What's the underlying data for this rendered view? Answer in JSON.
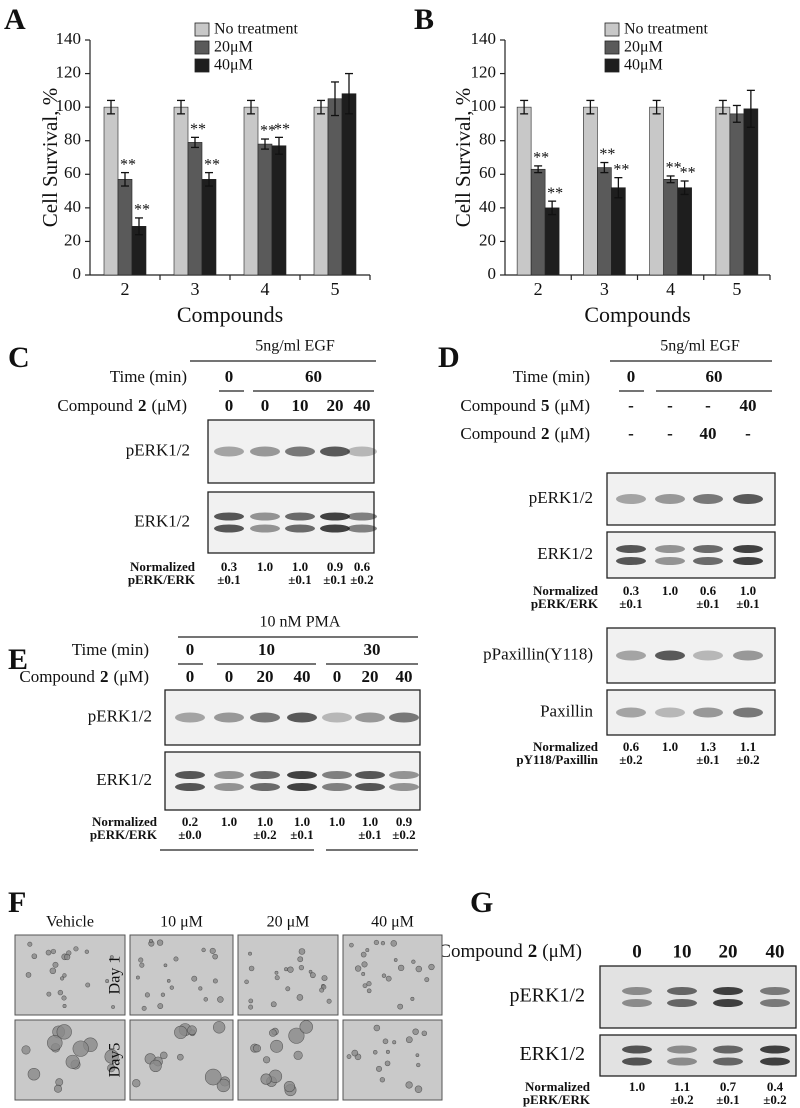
{
  "chart_data": [
    {
      "type": "bar",
      "label": "A",
      "ylabel": "Cell Survival, %",
      "xlabel": "Compounds",
      "categories": [
        "2",
        "3",
        "4",
        "5"
      ],
      "series": [
        {
          "name": "No treatment",
          "color": "#c8c8c8",
          "values": [
            100,
            100,
            100,
            100
          ],
          "errors": [
            4,
            4,
            4,
            4
          ]
        },
        {
          "name": "20μM",
          "color": "#5a5a5a",
          "values": [
            57,
            79,
            78,
            105
          ],
          "errors": [
            4,
            3,
            3,
            10
          ],
          "markers": [
            "**",
            "**",
            "**",
            null
          ]
        },
        {
          "name": "40μM",
          "color": "#1e1e1e",
          "values": [
            29,
            57,
            77,
            108
          ],
          "errors": [
            5,
            4,
            5,
            12
          ],
          "markers": [
            "**",
            "**",
            "**",
            null
          ]
        }
      ],
      "ylim": [
        0,
        140
      ],
      "yticks": [
        0,
        20,
        40,
        60,
        80,
        100,
        120,
        140
      ]
    },
    {
      "type": "bar",
      "label": "B",
      "ylabel": "Cell Survival, %",
      "xlabel": "Compounds",
      "categories": [
        "2",
        "3",
        "4",
        "5"
      ],
      "series": [
        {
          "name": "No treatment",
          "color": "#c8c8c8",
          "values": [
            100,
            100,
            100,
            100
          ],
          "errors": [
            4,
            4,
            4,
            4
          ]
        },
        {
          "name": "20μM",
          "color": "#5a5a5a",
          "values": [
            63,
            64,
            57,
            96
          ],
          "errors": [
            2,
            3,
            2,
            5
          ],
          "markers": [
            "**",
            "**",
            "**",
            null
          ]
        },
        {
          "name": "40μM",
          "color": "#1e1e1e",
          "values": [
            40,
            52,
            52,
            99
          ],
          "errors": [
            4,
            6,
            4,
            11
          ],
          "markers": [
            "**",
            "**",
            "**",
            null
          ]
        }
      ],
      "ylim": [
        0,
        140
      ],
      "yticks": [
        0,
        20,
        40,
        60,
        80,
        100,
        120,
        140
      ]
    }
  ],
  "blots": [
    {
      "label": "C",
      "treatment": "5ng/ml EGF",
      "header_rows": [
        {
          "label": "Time (min)",
          "cells": [
            "0",
            "60"
          ]
        },
        {
          "label": {
            "prefix": "Compound",
            "compound": "2",
            "unit": "(μM)"
          },
          "cells": [
            "0",
            "0",
            "10",
            "20",
            "40"
          ]
        }
      ],
      "blot_labels": [
        "pERK1/2",
        "ERK1/2"
      ],
      "normalized": [
        {
          "label": [
            "Normalized",
            "pERK/ERK"
          ],
          "values": [
            [
              "0.3",
              "±0.1"
            ],
            [
              "1.0"
            ],
            [
              "1.0",
              "±0.1"
            ],
            [
              "0.9",
              "±0.1"
            ],
            [
              "0.6",
              "±0.2"
            ]
          ]
        }
      ]
    },
    {
      "label": "D",
      "treatment": "5ng/ml EGF",
      "header_rows": [
        {
          "label": "Time (min)",
          "cells": [
            "0",
            "60"
          ]
        },
        {
          "label": {
            "prefix": "Compound",
            "compound": "5",
            "unit": "(μM)"
          },
          "cells": [
            "-",
            "-",
            "-",
            "40"
          ]
        },
        {
          "label": {
            "prefix": "Compound",
            "compound": "2",
            "unit": "(μM)"
          },
          "cells": [
            "-",
            "-",
            "40",
            "-"
          ]
        }
      ],
      "blot_labels": [
        "pERK1/2",
        "ERK1/2",
        "pPaxillin(Y118)",
        "Paxillin"
      ],
      "normalized": [
        {
          "label": [
            "Normalized",
            "pERK/ERK"
          ],
          "values": [
            [
              "0.3",
              "±0.1"
            ],
            [
              "1.0"
            ],
            [
              "0.6",
              "±0.1"
            ],
            [
              "1.0",
              "±0.1"
            ]
          ]
        },
        {
          "label": [
            "Normalized",
            "pY118/Paxillin"
          ],
          "values": [
            [
              "0.6",
              "±0.2"
            ],
            [
              "1.0"
            ],
            [
              "1.3",
              "±0.1"
            ],
            [
              "1.1",
              "±0.2"
            ]
          ]
        }
      ]
    },
    {
      "label": "E",
      "treatment": "10 nM PMA",
      "header_rows": [
        {
          "label": "Time (min)",
          "cells": [
            "0",
            "10",
            "30"
          ]
        },
        {
          "label": {
            "prefix": "Compound",
            "compound": "2",
            "unit": "(μM)"
          },
          "cells": [
            "0",
            "0",
            "20",
            "40",
            "0",
            "20",
            "40"
          ]
        }
      ],
      "blot_labels": [
        "pERK1/2",
        "ERK1/2"
      ],
      "normalized": [
        {
          "label": [
            "Normalized",
            "pERK/ERK"
          ],
          "values": [
            [
              "0.2",
              "±0.0"
            ],
            [
              "1.0"
            ],
            [
              "1.0",
              "±0.2"
            ],
            [
              "1.0",
              "±0.1"
            ],
            [
              "1.0"
            ],
            [
              "1.0",
              "±0.1"
            ],
            [
              "0.9",
              "±0.2"
            ]
          ]
        }
      ]
    },
    {
      "label": "G",
      "header_rows": [
        {
          "label": {
            "prefix": "Compound",
            "compound": "2",
            "unit": "(μM)"
          },
          "cells": [
            "0",
            "10",
            "20",
            "40"
          ]
        }
      ],
      "blot_labels": [
        "pERK1/2",
        "ERK1/2"
      ],
      "normalized": [
        {
          "label": [
            "Normalized",
            "pERK/ERK"
          ],
          "values": [
            [
              "1.0"
            ],
            [
              "1.1",
              "±0.2"
            ],
            [
              "0.7",
              "±0.1"
            ],
            [
              "0.4",
              "±0.2"
            ]
          ]
        }
      ]
    }
  ],
  "micrographs": {
    "label": "F",
    "columns": [
      "Vehicle",
      "10 μM",
      "20 μM",
      "40 μM"
    ],
    "rows": [
      "Day 1",
      "Day5"
    ]
  }
}
